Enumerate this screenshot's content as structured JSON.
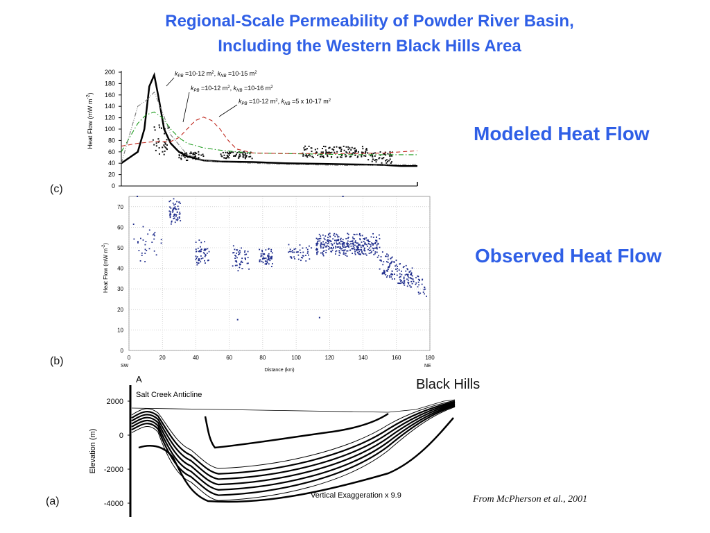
{
  "title_line1": "Regional-Scale Permeability of Powder River Basin,",
  "title_line2": "Including the Western Black Hills Area",
  "modeled_label": "Modeled Heat Flow",
  "observed_label": "Observed Heat Flow",
  "panel_c": "(c)",
  "panel_b": "(b)",
  "panel_a": "(a)",
  "black_hills": "Black Hills",
  "credit": "From McPherson et al., 2001",
  "chart_data": [
    {
      "id": "c",
      "type": "line",
      "ylabel": "Heat Flow (mW m-2)",
      "ylim": [
        0,
        200
      ],
      "yticks": [
        0,
        20,
        40,
        60,
        80,
        100,
        120,
        140,
        160,
        180,
        200
      ],
      "xlim": [
        0,
        180
      ],
      "grid": false,
      "annotations": [
        {
          "k_pb": "10-12 m2",
          "k_nb": "10-15 m2"
        },
        {
          "k_pb": "10-12 m2",
          "k_nb": "10-16 m2"
        },
        {
          "k_pb": "10-12 m2",
          "k_nb": "5 x 10-17 m2"
        }
      ],
      "series": [
        {
          "color": "#000000",
          "style": "solid-thick",
          "x": [
            0,
            5,
            10,
            14,
            17,
            20,
            23,
            26,
            30,
            35,
            40,
            50,
            60,
            80,
            100,
            120,
            140,
            160,
            165,
            170,
            175,
            180
          ],
          "y": [
            40,
            50,
            60,
            100,
            175,
            195,
            150,
            100,
            75,
            60,
            52,
            45,
            43,
            42,
            40,
            39,
            38,
            37,
            36,
            35,
            35,
            35
          ]
        },
        {
          "color": "#1a9a1a",
          "style": "dash-dot",
          "x": [
            0,
            5,
            10,
            15,
            20,
            25,
            30,
            35,
            40,
            50,
            60,
            70,
            80,
            100,
            120,
            140,
            160,
            180
          ],
          "y": [
            60,
            85,
            110,
            125,
            130,
            120,
            100,
            85,
            75,
            67,
            63,
            60,
            58,
            57,
            56,
            55,
            55,
            55
          ]
        },
        {
          "color": "#c0281e",
          "style": "dashed",
          "x": [
            0,
            10,
            20,
            30,
            35,
            40,
            45,
            50,
            55,
            60,
            65,
            70,
            80,
            100,
            120,
            140,
            160,
            180
          ],
          "y": [
            70,
            75,
            78,
            78,
            85,
            100,
            115,
            121,
            115,
            100,
            80,
            65,
            58,
            57,
            57,
            57,
            58,
            62
          ]
        },
        {
          "color": "#777777",
          "style": "dash-dot-dot",
          "x": [
            0,
            10,
            15,
            20,
            25,
            30,
            40,
            50,
            60,
            80,
            100,
            120,
            140,
            160,
            180
          ],
          "y": [
            40,
            140,
            150,
            165,
            130,
            90,
            55,
            45,
            42,
            40,
            38,
            37,
            36,
            37,
            38
          ]
        }
      ],
      "observed_overlay": [
        {
          "x_range": [
            18,
            30
          ],
          "y_range": [
            55,
            110
          ]
        },
        {
          "x_range": [
            35,
            50
          ],
          "y_range": [
            45,
            60
          ]
        },
        {
          "x_range": [
            60,
            80
          ],
          "y_range": [
            48,
            60
          ]
        },
        {
          "x_range": [
            110,
            150
          ],
          "y_range": [
            50,
            70
          ]
        },
        {
          "x_range": [
            150,
            165
          ],
          "y_range": [
            40,
            60
          ]
        }
      ]
    },
    {
      "id": "b",
      "type": "scatter",
      "ylabel": "Heat Flow (mW m-2)",
      "xlabel": "Distance (km)",
      "xlim": [
        0,
        180
      ],
      "ylim": [
        0,
        75
      ],
      "xticks": [
        0,
        20,
        40,
        60,
        80,
        100,
        120,
        140,
        160,
        180
      ],
      "yticks": [
        0,
        10,
        20,
        30,
        40,
        50,
        60,
        70
      ],
      "x_ends": [
        "SW",
        "NE"
      ],
      "grid": true,
      "marker_color": "#1f2d8c",
      "clusters": [
        {
          "x_range": [
            2,
            20
          ],
          "y_range": [
            40,
            65
          ],
          "n": 30
        },
        {
          "x_range": [
            24,
            31
          ],
          "y_range": [
            60,
            74
          ],
          "n": 60
        },
        {
          "x_range": [
            40,
            48
          ],
          "y_range": [
            40,
            55
          ],
          "n": 50
        },
        {
          "x_range": [
            62,
            72
          ],
          "y_range": [
            38,
            52
          ],
          "n": 45
        },
        {
          "x_range": [
            78,
            86
          ],
          "y_range": [
            40,
            50
          ],
          "n": 60
        },
        {
          "x_range": [
            95,
            110
          ],
          "y_range": [
            43,
            52
          ],
          "n": 40
        },
        {
          "x_range": [
            112,
            150
          ],
          "y_range": [
            45,
            58
          ],
          "n": 320
        },
        {
          "x_range": [
            150,
            170
          ],
          "y_range": [
            30,
            50
          ],
          "n": 120
        },
        {
          "x_range": [
            165,
            178
          ],
          "y_range": [
            25,
            45
          ],
          "n": 40
        }
      ],
      "outliers": [
        [
          65,
          15
        ],
        [
          114,
          16
        ],
        [
          128,
          75
        ],
        [
          5,
          75
        ]
      ]
    },
    {
      "id": "a",
      "type": "cross-section",
      "ylabel": "Elevation (m)",
      "yticks": [
        2000,
        0,
        -2000,
        -4000
      ],
      "ylim": [
        -5000,
        2500
      ],
      "top_label": "A",
      "left_label": "Salt Creek Anticline",
      "right_label": "Black Hills",
      "note": "Vertical Exaggeration x 9.9",
      "layer_offsets_m": [
        0,
        300,
        600,
        900,
        1200,
        1500,
        1800
      ]
    }
  ]
}
